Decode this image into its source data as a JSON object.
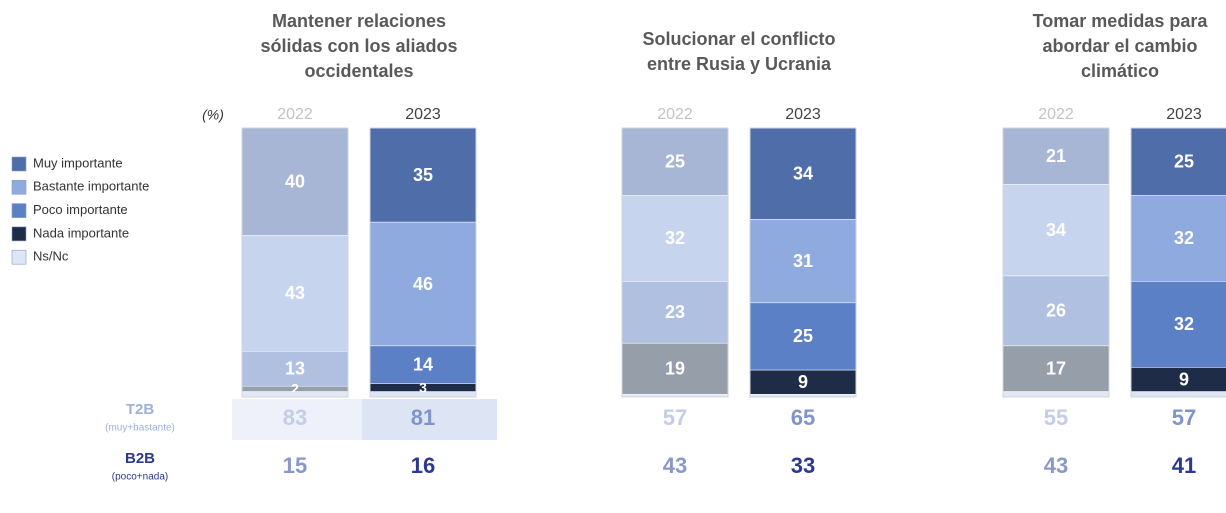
{
  "unit_label": "(%)",
  "legend": [
    {
      "name": "Muy importante",
      "color": "#4f6ea9",
      "muted_color": "#a8b6d5"
    },
    {
      "name": "Bastante importante",
      "color": "#8eaadf",
      "muted_color": "#c6d4ee"
    },
    {
      "name": "Poco importante",
      "color": "#5b80c5",
      "muted_color": "#b0c0e0"
    },
    {
      "name": "Nada importante",
      "color": "#1f2c48",
      "muted_color": "#959ea9"
    },
    {
      "name": "Ns/Nc",
      "color": "#dce6f7",
      "muted_color": "#e2e9f5"
    }
  ],
  "summary": {
    "t2b": {
      "label": "T2B",
      "sublabel": "(muy+bastante)",
      "colors": [
        "#c3cde6",
        "#7f95c9"
      ]
    },
    "b2b": {
      "label": "B2B",
      "sublabel": "(poco+nada)",
      "colors": [
        "#8a97c9",
        "#2b3990"
      ]
    }
  },
  "chart_data": [
    {
      "type": "stacked-bar",
      "title": [
        "Mantener relaciones",
        "sólidas con los aliados",
        "occidentales"
      ],
      "categories": [
        "2022",
        "2023"
      ],
      "ylim": [
        0,
        100
      ],
      "highlight": true,
      "series": [
        {
          "values": [
            40,
            35
          ]
        },
        {
          "values": [
            43,
            46
          ]
        },
        {
          "values": [
            13,
            14
          ]
        },
        {
          "values": [
            2,
            3
          ]
        },
        {
          "values": [
            2,
            2
          ],
          "value_labels": [
            null,
            null
          ]
        }
      ],
      "t2b": [
        83,
        81
      ],
      "b2b": [
        15,
        16
      ]
    },
    {
      "type": "stacked-bar",
      "title": [
        "Solucionar el conflicto",
        "entre Rusia y Ucrania"
      ],
      "categories": [
        "2022",
        "2023"
      ],
      "ylim": [
        0,
        100
      ],
      "highlight": false,
      "series": [
        {
          "values": [
            25,
            34
          ]
        },
        {
          "values": [
            32,
            31
          ]
        },
        {
          "values": [
            23,
            25
          ]
        },
        {
          "values": [
            19,
            9
          ]
        },
        {
          "values": [
            1,
            1
          ],
          "value_labels": [
            null,
            null
          ]
        }
      ],
      "t2b": [
        57,
        65
      ],
      "b2b": [
        43,
        33
      ]
    },
    {
      "type": "stacked-bar",
      "title": [
        "Tomar medidas para",
        "abordar el cambio",
        "climático"
      ],
      "categories": [
        "2022",
        "2023"
      ],
      "ylim": [
        0,
        100
      ],
      "highlight": false,
      "series": [
        {
          "values": [
            21,
            25
          ]
        },
        {
          "values": [
            34,
            32
          ]
        },
        {
          "values": [
            26,
            32
          ]
        },
        {
          "values": [
            17,
            9
          ]
        },
        {
          "values": [
            2,
            2
          ],
          "value_labels": [
            null,
            null
          ]
        }
      ],
      "t2b": [
        55,
        57
      ],
      "b2b": [
        43,
        41
      ]
    }
  ]
}
